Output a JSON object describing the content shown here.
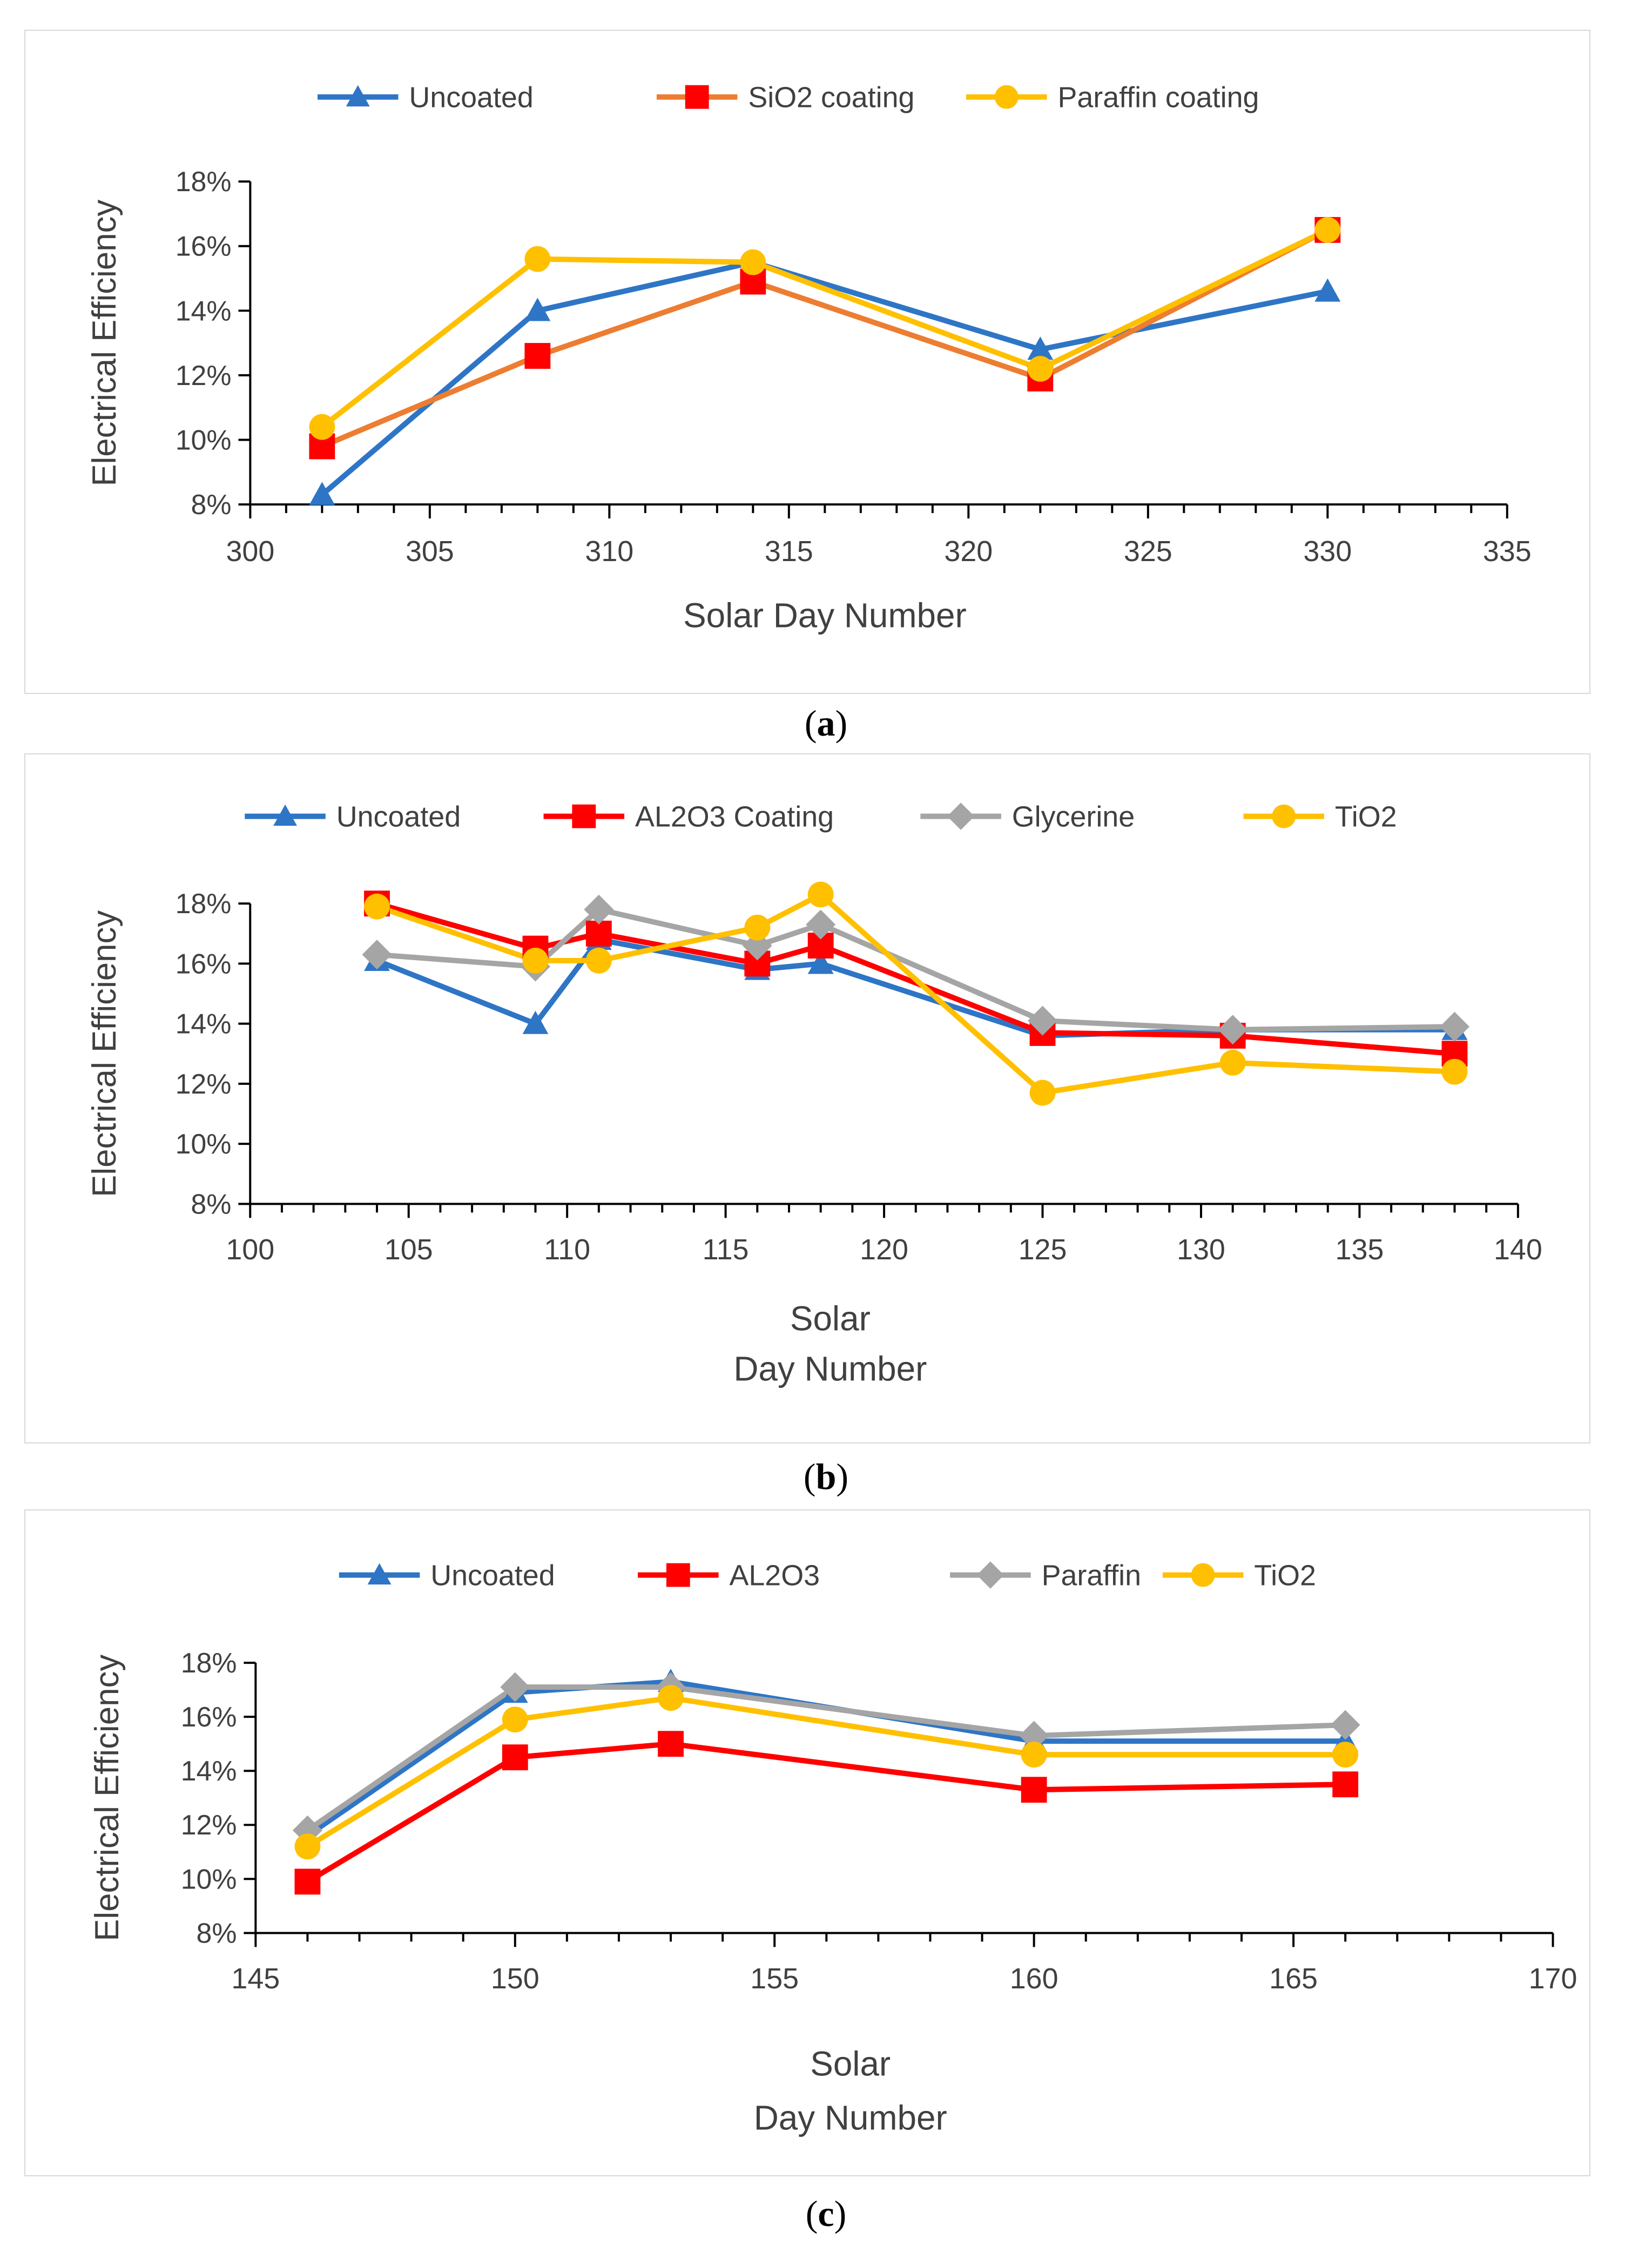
{
  "chart_data": [
    {
      "type": "line",
      "caption_letter": "a",
      "xlabel": "Solar Day Number",
      "xlabel_lines": [
        "Solar Day Number"
      ],
      "ylabel": "Electrical Efficiency",
      "xlim": [
        300,
        335
      ],
      "x_ticks": [
        300,
        305,
        310,
        315,
        320,
        325,
        330,
        335
      ],
      "ylim": [
        8,
        18
      ],
      "y_ticks": [
        8,
        10,
        12,
        14,
        16,
        18
      ],
      "y_tick_labels": [
        "8%",
        "10%",
        "12%",
        "14%",
        "16%",
        "18%"
      ],
      "series": [
        {
          "name": "Uncoated",
          "color": "#2E75C6",
          "marker": "triangle",
          "x": [
            302,
            308,
            314,
            322,
            330
          ],
          "y": [
            8.3,
            14.0,
            15.5,
            12.8,
            14.6
          ]
        },
        {
          "name": "SiO2 coating",
          "color": "#ED7D31",
          "marker_color": "#FF0000",
          "marker": "square",
          "x": [
            302,
            308,
            314,
            322,
            330
          ],
          "y": [
            9.8,
            12.6,
            14.9,
            11.9,
            16.5
          ]
        },
        {
          "name": "Paraffin coating",
          "color": "#FFC000",
          "marker": "circle",
          "x": [
            302,
            308,
            314,
            322,
            330
          ],
          "y": [
            10.4,
            15.6,
            15.5,
            12.2,
            16.5
          ]
        }
      ]
    },
    {
      "type": "line",
      "caption_letter": "b",
      "xlabel": "Solar Day Number",
      "xlabel_lines": [
        "Solar",
        "Day Number"
      ],
      "ylabel": "Electrical Efficiency",
      "xlim": [
        100,
        140
      ],
      "x_ticks": [
        100,
        105,
        110,
        115,
        120,
        125,
        130,
        135,
        140
      ],
      "ylim": [
        8,
        18
      ],
      "y_ticks": [
        8,
        10,
        12,
        14,
        16,
        18
      ],
      "y_tick_labels": [
        "8%",
        "10%",
        "12%",
        "14%",
        "16%",
        "18%"
      ],
      "series": [
        {
          "name": "Uncoated",
          "color": "#2E75C6",
          "marker": "triangle",
          "x": [
            104,
            109,
            111,
            116,
            118,
            125,
            131,
            138
          ],
          "y": [
            16.1,
            14.0,
            16.8,
            15.8,
            16.0,
            13.6,
            13.8,
            13.8
          ]
        },
        {
          "name": "AL2O3 Coating",
          "color": "#FF0000",
          "marker": "square",
          "x": [
            104,
            109,
            111,
            116,
            118,
            125,
            131,
            138
          ],
          "y": [
            18.0,
            16.5,
            17.0,
            16.0,
            16.6,
            13.7,
            13.6,
            13.0
          ]
        },
        {
          "name": "Glycerine",
          "color": "#A5A5A5",
          "marker": "diamond",
          "x": [
            104,
            109,
            111,
            116,
            118,
            125,
            131,
            138
          ],
          "y": [
            16.3,
            15.9,
            17.8,
            16.6,
            17.3,
            14.1,
            13.8,
            13.9
          ]
        },
        {
          "name": "TiO2",
          "color": "#FFC000",
          "marker": "circle",
          "x": [
            104,
            109,
            111,
            116,
            118,
            125,
            131,
            138
          ],
          "y": [
            17.9,
            16.1,
            16.1,
            17.2,
            18.3,
            11.7,
            12.7,
            12.4
          ]
        }
      ]
    },
    {
      "type": "line",
      "caption_letter": "c",
      "xlabel": "Solar Day Number",
      "xlabel_lines": [
        "Solar",
        "Day Number"
      ],
      "ylabel": "Electrical Efficiency",
      "xlim": [
        145,
        170
      ],
      "x_ticks": [
        145,
        150,
        155,
        160,
        165,
        170
      ],
      "ylim": [
        8,
        18
      ],
      "y_ticks": [
        8,
        10,
        12,
        14,
        16,
        18
      ],
      "y_tick_labels": [
        "8%",
        "10%",
        "12%",
        "14%",
        "16%",
        "18%"
      ],
      "series": [
        {
          "name": "Uncoated",
          "color": "#2E75C6",
          "marker": "triangle",
          "x": [
            146,
            150,
            153,
            160,
            166
          ],
          "y": [
            11.6,
            16.9,
            17.3,
            15.1,
            15.1
          ]
        },
        {
          "name": "AL2O3",
          "color": "#FF0000",
          "marker": "square",
          "x": [
            146,
            150,
            153,
            160,
            166
          ],
          "y": [
            9.9,
            14.5,
            15.0,
            13.3,
            13.5
          ]
        },
        {
          "name": "Paraffin",
          "color": "#A5A5A5",
          "marker": "diamond",
          "x": [
            146,
            150,
            153,
            160,
            166
          ],
          "y": [
            11.8,
            17.1,
            17.1,
            15.3,
            15.7
          ]
        },
        {
          "name": "TiO2",
          "color": "#FFC000",
          "marker": "circle",
          "x": [
            146,
            150,
            153,
            160,
            166
          ],
          "y": [
            11.2,
            15.9,
            16.7,
            14.6,
            14.6
          ]
        }
      ]
    }
  ]
}
